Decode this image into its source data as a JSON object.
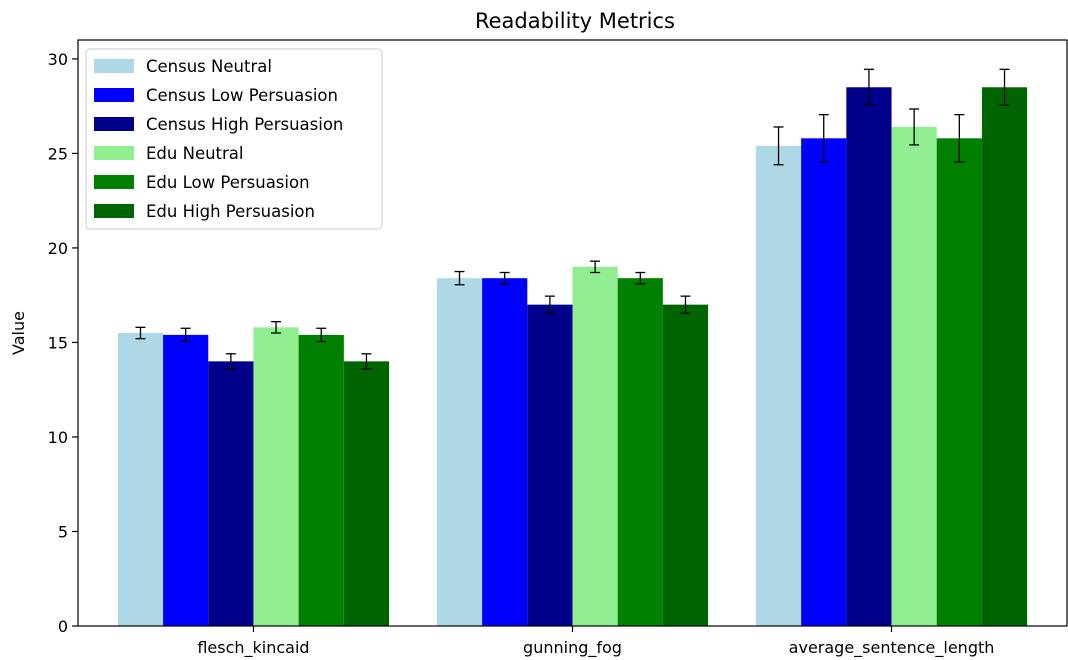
{
  "chart_data": {
    "type": "bar",
    "title": "Readability Metrics",
    "xlabel": "",
    "ylabel": "Value",
    "categories": [
      "flesch_kincaid",
      "gunning_fog",
      "average_sentence_length"
    ],
    "ylim": [
      0,
      31
    ],
    "yticks": [
      0,
      5,
      10,
      15,
      20,
      25,
      30
    ],
    "grid": false,
    "legend_position": "top-left",
    "series": [
      {
        "name": "Census Neutral",
        "color": "#add8e6",
        "values": [
          15.5,
          18.4,
          25.4
        ],
        "errors": [
          0.3,
          0.35,
          1.0
        ]
      },
      {
        "name": "Census Low Persuasion",
        "color": "#0000ff",
        "values": [
          15.4,
          18.4,
          25.8
        ],
        "errors": [
          0.35,
          0.3,
          1.25
        ]
      },
      {
        "name": "Census High Persuasion",
        "color": "#00008b",
        "values": [
          14.0,
          17.0,
          28.5
        ],
        "errors": [
          0.4,
          0.45,
          0.95
        ]
      },
      {
        "name": "Edu Neutral",
        "color": "#90ee90",
        "values": [
          15.8,
          19.0,
          26.4
        ],
        "errors": [
          0.3,
          0.3,
          0.95
        ]
      },
      {
        "name": "Edu Low Persuasion",
        "color": "#008000",
        "values": [
          15.4,
          18.4,
          25.8
        ],
        "errors": [
          0.35,
          0.3,
          1.25
        ]
      },
      {
        "name": "Edu High Persuasion",
        "color": "#006400",
        "values": [
          14.0,
          17.0,
          28.5
        ],
        "errors": [
          0.4,
          0.45,
          0.95
        ]
      }
    ]
  }
}
